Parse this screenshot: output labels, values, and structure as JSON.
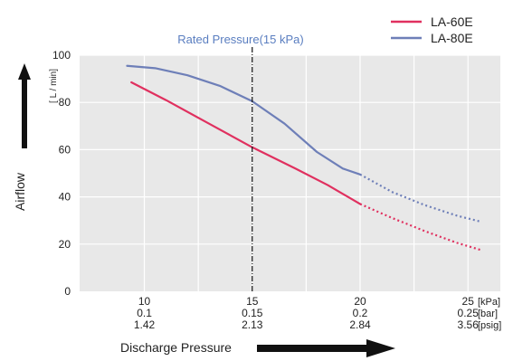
{
  "chart_data": {
    "type": "line",
    "ylabel": "Airflow",
    "yunit": "[ L / min]",
    "xlabel": "Discharge Pressure",
    "ylim": [
      0,
      100
    ],
    "yticks": [
      0,
      20,
      40,
      60,
      80,
      100
    ],
    "xlim": [
      7,
      26.5
    ],
    "xticks": [
      {
        "x": 10,
        "rows": [
          "10",
          "0.1",
          "1.42"
        ]
      },
      {
        "x": 15,
        "rows": [
          "15",
          "0.15",
          "2.13"
        ]
      },
      {
        "x": 20,
        "rows": [
          "20",
          "0.2",
          "2.84"
        ]
      },
      {
        "x": 25,
        "rows": [
          "25",
          "0.25",
          "3.56"
        ]
      }
    ],
    "xunits": [
      "[kPa]",
      "[bar]",
      "[psig]"
    ],
    "grid": true,
    "legend_position": "top-right",
    "annotation": {
      "x": 15,
      "label": "Rated Pressure(15 kPa)"
    },
    "series": [
      {
        "name": "LA-60E",
        "color": "#e0305f",
        "solid": [
          [
            9.4,
            88.5
          ],
          [
            11,
            81
          ],
          [
            13,
            71
          ],
          [
            15,
            61
          ],
          [
            17,
            52
          ],
          [
            18.5,
            45
          ],
          [
            20,
            37
          ]
        ],
        "dotted": [
          [
            20,
            37
          ],
          [
            21.5,
            31
          ],
          [
            23,
            25.5
          ],
          [
            24.5,
            20.5
          ],
          [
            25.6,
            17.5
          ]
        ]
      },
      {
        "name": "LA-80E",
        "color": "#6e7fb8",
        "solid": [
          [
            9.2,
            95.5
          ],
          [
            10.5,
            94.5
          ],
          [
            12,
            91.5
          ],
          [
            13.5,
            87
          ],
          [
            15,
            80.5
          ],
          [
            16.5,
            71
          ],
          [
            18,
            59
          ],
          [
            19.2,
            52
          ],
          [
            20,
            49.5
          ]
        ],
        "dotted": [
          [
            20,
            49.5
          ],
          [
            21.5,
            42
          ],
          [
            23,
            36.5
          ],
          [
            24.5,
            32
          ],
          [
            25.6,
            29.5
          ]
        ]
      }
    ]
  }
}
